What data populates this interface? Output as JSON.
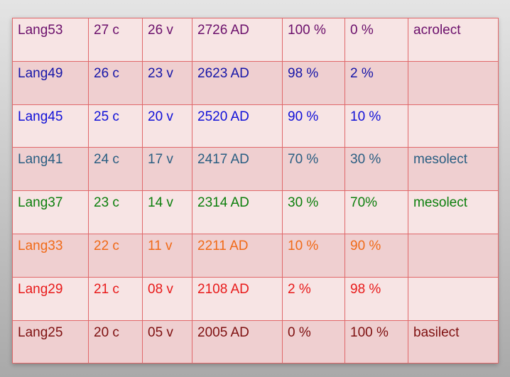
{
  "table": {
    "rows": [
      {
        "color": "#6b0f6b",
        "cells": [
          "Lang53",
          "27 c",
          "26 v",
          "2726 AD",
          "100 %",
          "0 %",
          "acrolect"
        ]
      },
      {
        "color": "#1616a8",
        "cells": [
          "Lang49",
          "26 c",
          "23 v",
          "2623 AD",
          "98 %",
          "2 %",
          ""
        ]
      },
      {
        "color": "#1010d8",
        "cells": [
          "Lang45",
          "25 c",
          "20 v",
          "2520 AD",
          "90 %",
          "10 %",
          ""
        ]
      },
      {
        "color": "#2a5e82",
        "cells": [
          "Lang41",
          "24 c",
          "17 v",
          "2417 AD",
          "70 %",
          "30 %",
          "mesolect"
        ]
      },
      {
        "color": "#0c7f0c",
        "cells": [
          "Lang37",
          "23 c",
          "14 v",
          "2314 AD",
          "30 %",
          "70%",
          "mesolect"
        ]
      },
      {
        "color": "#f06a18",
        "cells": [
          "Lang33",
          "22 c",
          "11 v",
          "2211 AD",
          "10 %",
          "90 %",
          ""
        ]
      },
      {
        "color": "#e81a1a",
        "cells": [
          "Lang29",
          "21 c",
          "08 v",
          "2108 AD",
          "2 %",
          "98 %",
          ""
        ]
      },
      {
        "color": "#7e1010",
        "cells": [
          "Lang25",
          "20 c",
          "05 v",
          "2005 AD",
          "0 %",
          "100 %",
          "basilect"
        ]
      }
    ]
  }
}
